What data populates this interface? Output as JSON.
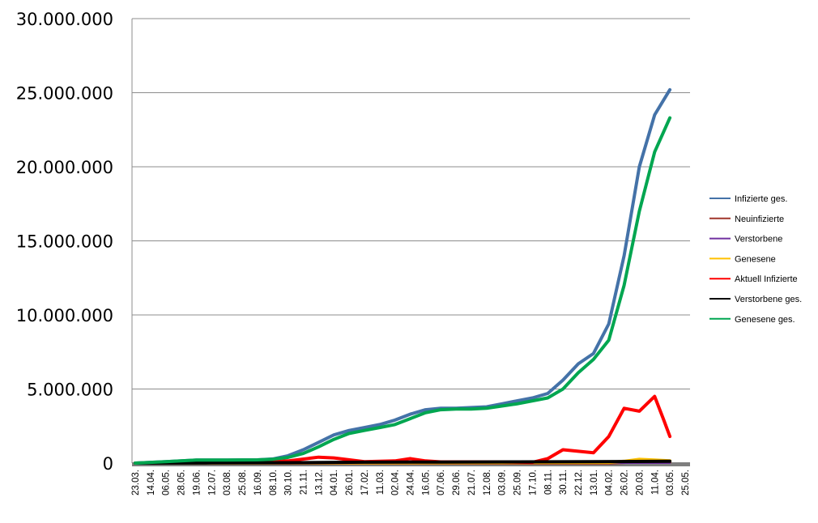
{
  "chart_data": {
    "type": "line",
    "ylim": [
      0,
      30000000
    ],
    "y_ticks": [
      {
        "value": 0,
        "label": "0"
      },
      {
        "value": 5000000,
        "label": "5.000.000"
      },
      {
        "value": 10000000,
        "label": "10.000.000"
      },
      {
        "value": 15000000,
        "label": "15.000.000"
      },
      {
        "value": 20000000,
        "label": "20.000.000"
      },
      {
        "value": 25000000,
        "label": "25.000.000"
      },
      {
        "value": 30000000,
        "label": "30.000.000"
      }
    ],
    "x_tick_labels": [
      "23.03.",
      "14.04.",
      "06.05.",
      "28.05.",
      "19.06.",
      "12.07.",
      "03.08.",
      "25.08.",
      "16.09.",
      "08.10.",
      "30.10.",
      "21.11.",
      "13.12.",
      "04.01.",
      "26.01.",
      "17.02.",
      "11.03.",
      "02.04.",
      "24.04.",
      "16.05.",
      "07.06.",
      "29.06.",
      "21.07.",
      "12.08.",
      "03.09.",
      "25.09.",
      "17.10.",
      "08.11.",
      "30.11.",
      "22.12.",
      "13.01.",
      "04.02.",
      "26.02.",
      "20.03.",
      "11.04.",
      "03.05.",
      "25.05."
    ],
    "grid": true,
    "legend_position": "right",
    "series": [
      {
        "name": "Infizierte ges.",
        "color": "#4472a8",
        "points": [
          [
            0,
            0
          ],
          [
            2,
            100000
          ],
          [
            4,
            200000
          ],
          [
            6,
            200000
          ],
          [
            8,
            220000
          ],
          [
            9,
            280000
          ],
          [
            10,
            500000
          ],
          [
            11,
            900000
          ],
          [
            12,
            1400000
          ],
          [
            13,
            1900000
          ],
          [
            14,
            2200000
          ],
          [
            15,
            2400000
          ],
          [
            16,
            2600000
          ],
          [
            17,
            2900000
          ],
          [
            18,
            3300000
          ],
          [
            19,
            3600000
          ],
          [
            20,
            3700000
          ],
          [
            21,
            3700000
          ],
          [
            22,
            3750000
          ],
          [
            23,
            3800000
          ],
          [
            24,
            4000000
          ],
          [
            25,
            4200000
          ],
          [
            26,
            4400000
          ],
          [
            27,
            4700000
          ],
          [
            28,
            5600000
          ],
          [
            29,
            6700000
          ],
          [
            30,
            7400000
          ],
          [
            31,
            9400000
          ],
          [
            32,
            14000000
          ],
          [
            33,
            20000000
          ],
          [
            34,
            23500000
          ],
          [
            35,
            25200000
          ]
        ]
      },
      {
        "name": "Neuinfizierte",
        "color": "#a0352a",
        "points": [
          [
            0,
            0
          ],
          [
            31,
            0
          ],
          [
            32,
            50000
          ],
          [
            33,
            150000
          ],
          [
            34,
            120000
          ],
          [
            35,
            80000
          ]
        ]
      },
      {
        "name": "Verstorbene",
        "color": "#7030a0",
        "points": [
          [
            0,
            0
          ],
          [
            35,
            0
          ]
        ]
      },
      {
        "name": "Genesene",
        "color": "#ffc000",
        "points": [
          [
            0,
            0
          ],
          [
            31,
            50000
          ],
          [
            32,
            120000
          ],
          [
            33,
            250000
          ],
          [
            34,
            200000
          ],
          [
            35,
            150000
          ]
        ]
      },
      {
        "name": "Aktuell Infizierte",
        "color": "#ff0000",
        "points": [
          [
            0,
            0
          ],
          [
            8,
            60000
          ],
          [
            10,
            150000
          ],
          [
            12,
            400000
          ],
          [
            13,
            350000
          ],
          [
            15,
            100000
          ],
          [
            17,
            150000
          ],
          [
            18,
            300000
          ],
          [
            19,
            150000
          ],
          [
            20,
            80000
          ],
          [
            24,
            80000
          ],
          [
            26,
            50000
          ],
          [
            27,
            300000
          ],
          [
            28,
            900000
          ],
          [
            29,
            800000
          ],
          [
            30,
            700000
          ],
          [
            31,
            1800000
          ],
          [
            32,
            3700000
          ],
          [
            33,
            3500000
          ],
          [
            34,
            4500000
          ],
          [
            34.6,
            2900000
          ],
          [
            35,
            1800000
          ]
        ]
      },
      {
        "name": "Verstorbene ges.",
        "color": "#000000",
        "points": [
          [
            0,
            0
          ],
          [
            5,
            10000
          ],
          [
            10,
            30000
          ],
          [
            15,
            60000
          ],
          [
            20,
            70000
          ],
          [
            25,
            80000
          ],
          [
            30,
            100000
          ],
          [
            35,
            120000
          ]
        ]
      },
      {
        "name": "Genesene ges.",
        "color": "#00a650",
        "points": [
          [
            0,
            0
          ],
          [
            2,
            100000
          ],
          [
            4,
            200000
          ],
          [
            6,
            200000
          ],
          [
            8,
            220000
          ],
          [
            9,
            260000
          ],
          [
            10,
            380000
          ],
          [
            11,
            650000
          ],
          [
            12,
            1100000
          ],
          [
            13,
            1600000
          ],
          [
            14,
            2000000
          ],
          [
            15,
            2200000
          ],
          [
            16,
            2400000
          ],
          [
            17,
            2600000
          ],
          [
            18,
            3000000
          ],
          [
            19,
            3400000
          ],
          [
            20,
            3600000
          ],
          [
            21,
            3650000
          ],
          [
            22,
            3650000
          ],
          [
            23,
            3700000
          ],
          [
            24,
            3850000
          ],
          [
            25,
            4000000
          ],
          [
            26,
            4200000
          ],
          [
            27,
            4400000
          ],
          [
            28,
            5000000
          ],
          [
            29,
            6100000
          ],
          [
            30,
            7000000
          ],
          [
            31,
            8300000
          ],
          [
            32,
            12000000
          ],
          [
            33,
            17000000
          ],
          [
            34,
            21000000
          ],
          [
            35,
            23300000
          ]
        ]
      }
    ]
  }
}
